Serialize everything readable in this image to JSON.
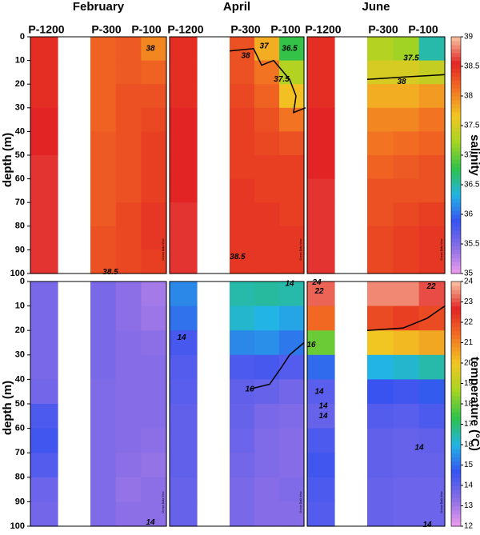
{
  "chart_data": {
    "type": "heatmap",
    "months": [
      "February",
      "April",
      "June"
    ],
    "stations": [
      "P-1200",
      "P-300",
      "P-100"
    ],
    "ylabel": "depth (m)",
    "ylim": [
      0,
      100
    ],
    "yticks": [
      0,
      10,
      20,
      30,
      40,
      50,
      60,
      70,
      80,
      90,
      100
    ],
    "depth_bins": [
      0,
      10,
      20,
      30,
      40,
      50,
      60,
      70,
      80,
      90,
      100
    ],
    "watermark": "Ocean Data View",
    "colormap": [
      "#ee9cee",
      "#8a6ee6",
      "#3552f0",
      "#22b4e4",
      "#2ec24a",
      "#a6d422",
      "#f2c622",
      "#f27222",
      "#e22424",
      "#f8c4a2"
    ],
    "colorbars": [
      {
        "label": "salinity",
        "lim": [
          35,
          39
        ],
        "ticks": [
          35,
          35.5,
          36,
          36.5,
          37,
          37.5,
          38,
          38.5,
          39
        ]
      },
      {
        "label": "temperature (°C)",
        "lim": [
          12,
          24
        ],
        "ticks": [
          12,
          13,
          14,
          15,
          16,
          17,
          18,
          19,
          20,
          21,
          22,
          23,
          24
        ]
      }
    ],
    "panels": [
      {
        "bar": 0,
        "month": 0,
        "contour_labels": [
          38,
          38.5
        ],
        "columns": [
          [
            38.5,
            38.5,
            38.5,
            38.55,
            38.55,
            38.6,
            38.6,
            38.6,
            38.6,
            38.6
          ],
          [
            38.2,
            38.2,
            38.2,
            38.2,
            38.25,
            38.25,
            38.25,
            38.25,
            38.3,
            38.3
          ],
          [
            38.25,
            38.25,
            38.3,
            38.3,
            38.3,
            38.3,
            38.3,
            38.35,
            38.35,
            38.35
          ],
          [
            38.0,
            38.2,
            38.3,
            38.35,
            38.4,
            38.4,
            38.4,
            38.45,
            38.45,
            38.4
          ]
        ]
      },
      {
        "bar": 0,
        "month": 1,
        "contour_labels": [
          37,
          36.5,
          38,
          37.5,
          38.5
        ],
        "columns": [
          [
            38.5,
            38.5,
            38.5,
            38.55,
            38.55,
            38.55,
            38.55,
            38.6,
            38.6,
            38.6
          ],
          [
            38.3,
            38.3,
            38.35,
            38.4,
            38.4,
            38.4,
            38.45,
            38.45,
            38.45,
            38.45
          ],
          [
            37.8,
            38.1,
            38.2,
            38.3,
            38.35,
            38.4,
            38.4,
            38.45,
            38.45,
            38.45
          ],
          [
            36.8,
            37.3,
            37.7,
            38.1,
            38.3,
            38.4,
            38.4,
            38.4,
            38.45,
            38.45
          ]
        ]
      },
      {
        "bar": 0,
        "month": 2,
        "contour_labels": [
          37.5,
          38
        ],
        "columns": [
          [
            38.5,
            38.5,
            38.5,
            38.55,
            38.55,
            38.55,
            38.6,
            38.6,
            38.6,
            38.6
          ],
          [
            37.3,
            37.5,
            37.8,
            38.0,
            38.1,
            38.2,
            38.3,
            38.3,
            38.35,
            38.35
          ],
          [
            37.2,
            37.5,
            37.8,
            38.0,
            38.15,
            38.25,
            38.3,
            38.35,
            38.4,
            38.4
          ],
          [
            36.5,
            37.4,
            37.9,
            38.1,
            38.2,
            38.3,
            38.3,
            38.4,
            38.45,
            38.45
          ]
        ]
      },
      {
        "bar": 1,
        "month": 0,
        "contour_labels": [
          14
        ],
        "columns": [
          [
            13.6,
            13.6,
            13.6,
            13.6,
            13.7,
            14.3,
            14.5,
            14.2,
            13.8,
            13.7
          ],
          [
            13.6,
            13.6,
            13.6,
            13.6,
            13.5,
            13.5,
            13.5,
            13.5,
            13.5,
            13.5
          ],
          [
            13.3,
            13.3,
            13.4,
            13.4,
            13.4,
            13.4,
            13.4,
            13.3,
            13.2,
            13.3
          ],
          [
            13.0,
            13.1,
            13.3,
            13.4,
            13.4,
            13.4,
            13.3,
            13.2,
            13.3,
            13.3
          ]
        ]
      },
      {
        "bar": 1,
        "month": 1,
        "contour_labels": [
          14,
          16,
          14
        ],
        "columns": [
          [
            15.4,
            15.1,
            14.4,
            14.2,
            14.1,
            14.0,
            14.0,
            14.0,
            13.9,
            13.9
          ],
          [
            16.5,
            16.2,
            15.4,
            14.3,
            14.0,
            13.9,
            13.8,
            13.7,
            13.6,
            13.6
          ],
          [
            16.6,
            16.0,
            15.5,
            14.4,
            13.9,
            13.6,
            13.5,
            13.5,
            13.4,
            13.4
          ],
          [
            16.5,
            15.8,
            15.2,
            14.2,
            13.7,
            13.5,
            13.4,
            13.4,
            13.5,
            13.4
          ]
        ]
      },
      {
        "bar": 1,
        "month": 2,
        "contour_labels": [
          24,
          22,
          16,
          14,
          14,
          14,
          22,
          14,
          14
        ],
        "columns": [
          [
            23.2,
            21.5,
            18.0,
            15.0,
            14.1,
            13.9,
            14.3,
            14.5,
            14.3,
            14.2
          ],
          [
            23.5,
            22.0,
            20.0,
            16.0,
            14.6,
            14.2,
            14.0,
            14.0,
            13.9,
            13.9
          ],
          [
            23.5,
            22.2,
            20.2,
            16.2,
            14.5,
            14.1,
            13.9,
            13.9,
            13.8,
            13.8
          ],
          [
            23.0,
            22.0,
            20.5,
            16.5,
            14.8,
            14.3,
            14.0,
            13.9,
            13.8,
            13.8
          ]
        ]
      }
    ]
  }
}
